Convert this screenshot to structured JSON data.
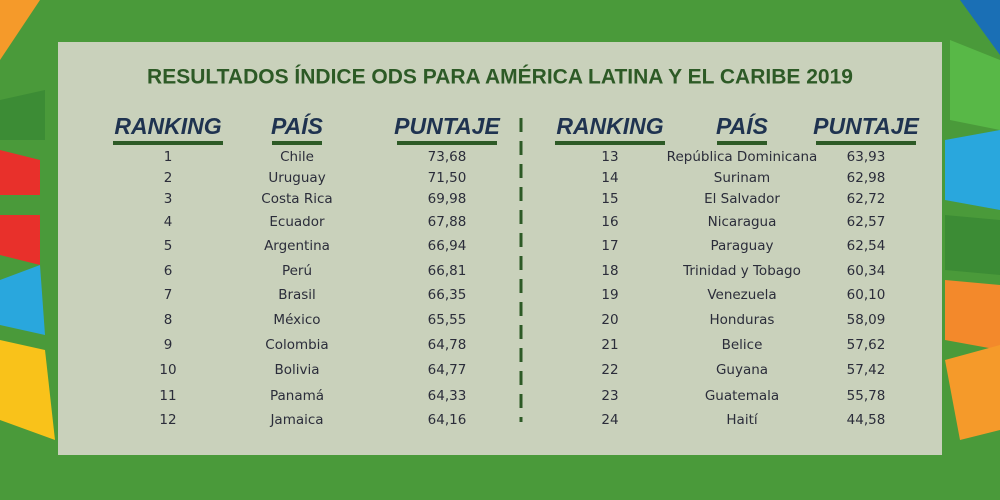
{
  "title": "RESULTADOS ÍNDICE ODS PARA AMÉRICA LATINA Y EL CARIBE 2019",
  "tables": [
    {
      "headers": [
        "RANKING",
        "PAÍS",
        "PUNTAJE"
      ],
      "rows": [
        [
          "1",
          "Chile",
          "73,68"
        ],
        [
          "2",
          "Uruguay",
          "71,50"
        ],
        [
          "3",
          "Costa Rica",
          "69,98"
        ],
        [
          "4",
          "Ecuador",
          "67,88"
        ],
        [
          "5",
          "Argentina",
          "66,94"
        ],
        [
          "6",
          "Perú",
          "66,81"
        ],
        [
          "7",
          "Brasil",
          "66,35"
        ],
        [
          "8",
          "México",
          "65,55"
        ],
        [
          "9",
          "Colombia",
          "64,78"
        ],
        [
          "10",
          "Bolivia",
          "64,77"
        ],
        [
          "11",
          "Panamá",
          "64,33"
        ],
        [
          "12",
          "Jamaica",
          "64,16"
        ]
      ]
    },
    {
      "headers": [
        "RANKING",
        "PAÍS",
        "PUNTAJE"
      ],
      "rows": [
        [
          "13",
          "República Dominicana",
          "63,93"
        ],
        [
          "14",
          "Surinam",
          "62,98"
        ],
        [
          "15",
          "El Salvador",
          "62,72"
        ],
        [
          "16",
          "Nicaragua",
          "62,57"
        ],
        [
          "17",
          "Paraguay",
          "62,54"
        ],
        [
          "18",
          "Trinidad y Tobago",
          "60,34"
        ],
        [
          "19",
          "Venezuela",
          "60,10"
        ],
        [
          "20",
          "Honduras",
          "58,09"
        ],
        [
          "21",
          "Belice",
          "57,62"
        ],
        [
          "22",
          "Guyana",
          "57,42"
        ],
        [
          "23",
          "Guatemala",
          "55,78"
        ],
        [
          "24",
          "Haití",
          "44,58"
        ]
      ]
    }
  ]
}
